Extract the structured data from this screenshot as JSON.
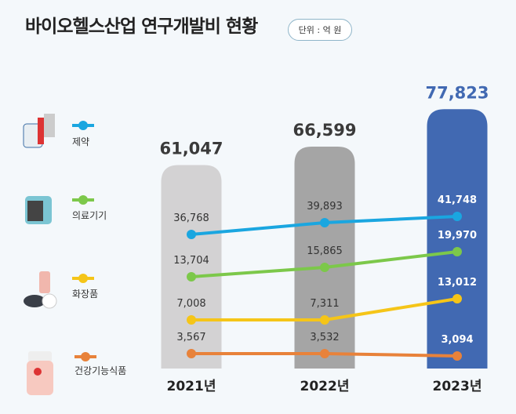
{
  "title": "바이오헬스산업 연구개발비 현황",
  "unit": "단위 : 억 원",
  "chart_data": {
    "type": "bar",
    "title": "바이오헬스산업 연구개발비 현황",
    "unit": "단위 : 억 원",
    "categories": [
      "2021년",
      "2022년",
      "2023년"
    ],
    "totals": [
      61047,
      66599,
      77823
    ],
    "total_labels": [
      "61,047",
      "66,599",
      "77,823"
    ],
    "bar_colors": [
      "#d3d2d3",
      "#a5a5a5",
      "#4169b2"
    ],
    "series": [
      {
        "name": "제약",
        "type": "line",
        "color": "#1aa6e0",
        "values": [
          36768,
          39893,
          41748
        ],
        "labels": [
          "36,768",
          "39,893",
          "41,748"
        ]
      },
      {
        "name": "의료기기",
        "type": "line",
        "color": "#7cc84a",
        "values": [
          13704,
          15865,
          19970
        ],
        "labels": [
          "13,704",
          "15,865",
          "19,970"
        ]
      },
      {
        "name": "화장품",
        "type": "line",
        "color": "#f5c518",
        "values": [
          7008,
          7311,
          13012
        ],
        "labels": [
          "7,008",
          "7,311",
          "13,012"
        ]
      },
      {
        "name": "건강기능식품",
        "type": "line",
        "color": "#e8823a",
        "values": [
          3567,
          3532,
          3094
        ],
        "labels": [
          "3,567",
          "3,532",
          "3,094"
        ]
      }
    ],
    "legend": "left"
  }
}
